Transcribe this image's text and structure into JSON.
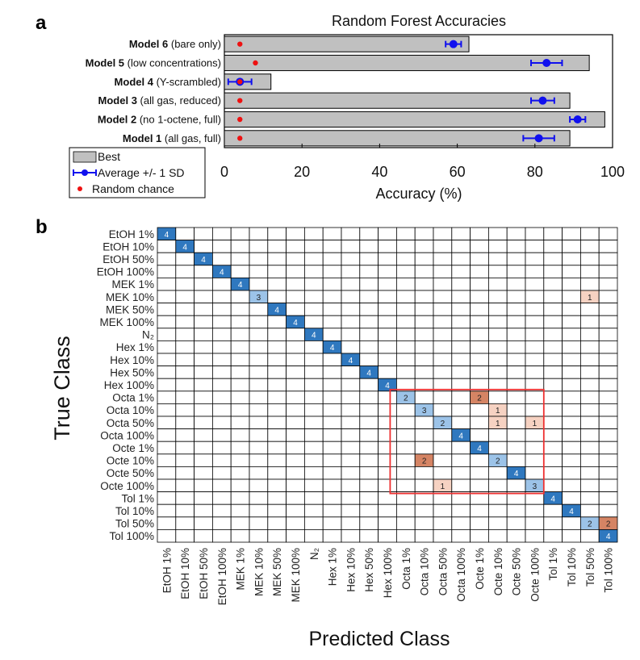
{
  "panel_labels": {
    "a": "a",
    "b": "b"
  },
  "colors": {
    "bar_fill": "#c0c0c0",
    "avg_marker": "#1010ee",
    "random_marker": "#ee1111",
    "diag_cell": "#2f78bf",
    "diag_cell_light": "#9cc3e8",
    "offdiag_1": "#f6d2c2",
    "offdiag_2": "#d58464",
    "highlight_box": "#ee3030"
  },
  "chart_data": [
    {
      "type": "bar",
      "orientation": "horizontal",
      "title": "Random Forest Accuracies",
      "xlabel": "Accuracy (%)",
      "ylabel": "",
      "xlim": [
        0,
        100
      ],
      "xticks": [
        0,
        20,
        40,
        60,
        80,
        100
      ],
      "categories": [
        {
          "bold": "Model 6",
          "rest": " (bare only)"
        },
        {
          "bold": "Model 5",
          "rest": " (low concentrations)"
        },
        {
          "bold": "Model 4",
          "rest": " (Y-scrambled)"
        },
        {
          "bold": "Model 3",
          "rest": " (all gas, reduced)"
        },
        {
          "bold": "Model 2",
          "rest": " (no 1-octene, full)"
        },
        {
          "bold": "Model 1",
          "rest": " (all gas, full)"
        }
      ],
      "series": [
        {
          "name": "Best",
          "values": [
            63,
            94,
            12,
            89,
            98,
            89
          ]
        },
        {
          "name": "Average +/- 1 SD",
          "values": [
            59,
            83,
            4,
            82,
            91,
            81
          ],
          "sd": [
            2,
            4,
            3,
            3,
            2,
            4
          ]
        },
        {
          "name": "Random chance",
          "values": [
            4,
            8,
            4,
            4,
            4,
            4
          ]
        }
      ],
      "legend": {
        "position": "bottom-left",
        "items": [
          "Best",
          "Average +/- 1 SD",
          "Random chance"
        ]
      }
    },
    {
      "type": "heatmap",
      "title": "",
      "xlabel": "Predicted Class",
      "ylabel": "True Class",
      "classes": [
        "EtOH 1%",
        "EtOH 10%",
        "EtOH 50%",
        "EtOH 100%",
        "MEK 1%",
        "MEK 10%",
        "MEK 50%",
        "MEK 100%",
        "N₂",
        "Hex 1%",
        "Hex 10%",
        "Hex 50%",
        "Hex 100%",
        "Octa 1%",
        "Octa 10%",
        "Octa 50%",
        "Octa 100%",
        "Octe 1%",
        "Octe 10%",
        "Octe 50%",
        "Octe 100%",
        "Tol 1%",
        "Tol 10%",
        "Tol 50%",
        "Tol 100%"
      ],
      "cells": [
        {
          "true": 0,
          "pred": 0,
          "count": 4
        },
        {
          "true": 1,
          "pred": 1,
          "count": 4
        },
        {
          "true": 2,
          "pred": 2,
          "count": 4
        },
        {
          "true": 3,
          "pred": 3,
          "count": 4
        },
        {
          "true": 4,
          "pred": 4,
          "count": 4
        },
        {
          "true": 5,
          "pred": 5,
          "count": 3
        },
        {
          "true": 5,
          "pred": 23,
          "count": 1
        },
        {
          "true": 6,
          "pred": 6,
          "count": 4
        },
        {
          "true": 7,
          "pred": 7,
          "count": 4
        },
        {
          "true": 8,
          "pred": 8,
          "count": 4
        },
        {
          "true": 9,
          "pred": 9,
          "count": 4
        },
        {
          "true": 10,
          "pred": 10,
          "count": 4
        },
        {
          "true": 11,
          "pred": 11,
          "count": 4
        },
        {
          "true": 12,
          "pred": 12,
          "count": 4
        },
        {
          "true": 13,
          "pred": 13,
          "count": 2
        },
        {
          "true": 13,
          "pred": 17,
          "count": 2
        },
        {
          "true": 14,
          "pred": 14,
          "count": 3
        },
        {
          "true": 14,
          "pred": 18,
          "count": 1
        },
        {
          "true": 15,
          "pred": 15,
          "count": 2
        },
        {
          "true": 15,
          "pred": 18,
          "count": 1
        },
        {
          "true": 15,
          "pred": 20,
          "count": 1
        },
        {
          "true": 16,
          "pred": 16,
          "count": 4
        },
        {
          "true": 17,
          "pred": 17,
          "count": 4
        },
        {
          "true": 18,
          "pred": 14,
          "count": 2
        },
        {
          "true": 18,
          "pred": 18,
          "count": 2
        },
        {
          "true": 19,
          "pred": 19,
          "count": 4
        },
        {
          "true": 20,
          "pred": 15,
          "count": 1
        },
        {
          "true": 20,
          "pred": 20,
          "count": 3
        },
        {
          "true": 21,
          "pred": 21,
          "count": 4
        },
        {
          "true": 22,
          "pred": 22,
          "count": 4
        },
        {
          "true": 23,
          "pred": 23,
          "count": 2
        },
        {
          "true": 23,
          "pred": 24,
          "count": 2
        },
        {
          "true": 24,
          "pred": 24,
          "count": 4
        }
      ],
      "highlight": {
        "from_class": "Octa 1%",
        "to_class": "Octe 100%",
        "color": "red"
      }
    }
  ]
}
